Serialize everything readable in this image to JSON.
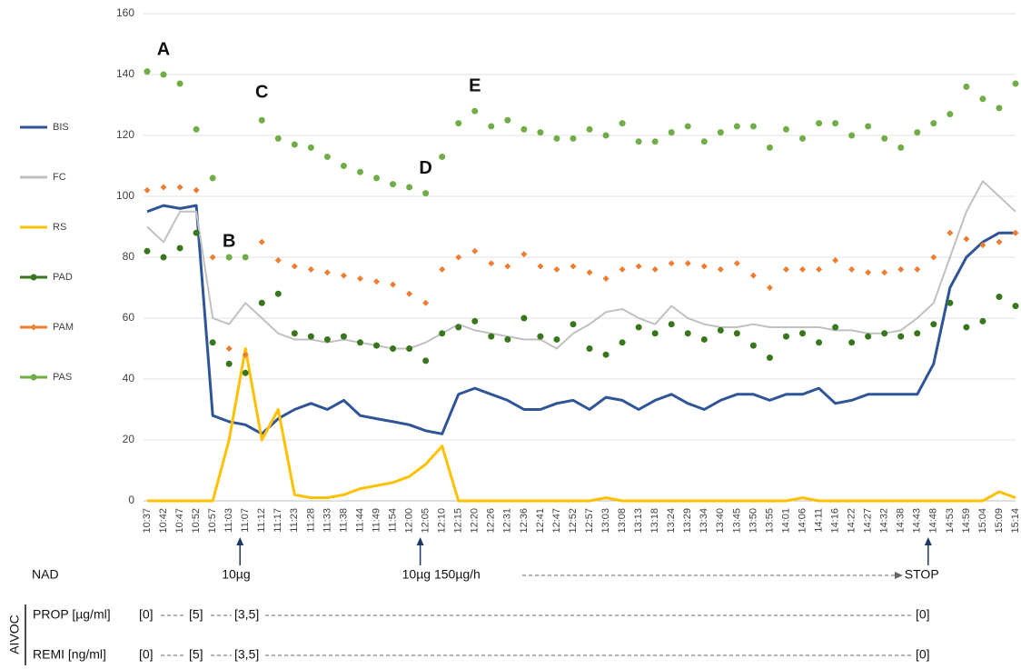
{
  "chart_data": {
    "type": "line",
    "categories": [
      "10:37",
      "10:42",
      "10:47",
      "10:52",
      "10:57",
      "11:03",
      "11:07",
      "11:12",
      "11:17",
      "11:23",
      "11:28",
      "11:33",
      "11:38",
      "11:44",
      "11:49",
      "11:54",
      "12:00",
      "12:05",
      "12:10",
      "12:15",
      "12:20",
      "12:26",
      "12:31",
      "12:36",
      "12:41",
      "12:47",
      "12:52",
      "12:57",
      "13:03",
      "13:08",
      "13:13",
      "13:18",
      "13:24",
      "13:29",
      "13:34",
      "13:40",
      "13:45",
      "13:50",
      "13:55",
      "14:01",
      "14:06",
      "14:11",
      "14:16",
      "14:22",
      "14:27",
      "14:32",
      "14:38",
      "14:43",
      "14:48",
      "14:53",
      "14:59",
      "15:04",
      "15:09",
      "15:14"
    ],
    "series": [
      {
        "name": "BIS",
        "color": "#2f5597",
        "kind": "line",
        "values": [
          95,
          97,
          96,
          97,
          28,
          26,
          25,
          22,
          27,
          30,
          32,
          30,
          33,
          28,
          27,
          26,
          25,
          23,
          22,
          35,
          37,
          35,
          33,
          30,
          30,
          32,
          33,
          30,
          34,
          33,
          30,
          33,
          35,
          32,
          30,
          33,
          35,
          35,
          33,
          35,
          35,
          37,
          32,
          33,
          35,
          35,
          35,
          35,
          45,
          70,
          80,
          85,
          88,
          88
        ]
      },
      {
        "name": "FC",
        "color": "#c0c0c0",
        "kind": "line",
        "values": [
          90,
          85,
          95,
          95,
          60,
          58,
          65,
          60,
          55,
          53,
          53,
          52,
          53,
          52,
          51,
          50,
          50,
          52,
          55,
          58,
          56,
          55,
          54,
          53,
          53,
          50,
          55,
          58,
          62,
          63,
          60,
          58,
          64,
          60,
          58,
          57,
          57,
          58,
          57,
          57,
          57,
          57,
          56,
          56,
          55,
          55,
          56,
          60,
          65,
          80,
          95,
          105,
          100,
          95
        ]
      },
      {
        "name": "RS",
        "color": "#ffc000",
        "kind": "line",
        "values": [
          0,
          0,
          0,
          0,
          0,
          20,
          50,
          20,
          30,
          2,
          1,
          1,
          2,
          4,
          5,
          6,
          8,
          12,
          18,
          0,
          0,
          0,
          0,
          0,
          0,
          0,
          0,
          0,
          1,
          0,
          0,
          0,
          0,
          0,
          0,
          0,
          0,
          0,
          0,
          0,
          1,
          0,
          0,
          0,
          0,
          0,
          0,
          0,
          0,
          0,
          0,
          0,
          3,
          1
        ]
      },
      {
        "name": "PAD",
        "color": "#38761d",
        "kind": "dots",
        "values": [
          82,
          80,
          83,
          88,
          52,
          45,
          42,
          65,
          68,
          55,
          54,
          53,
          54,
          52,
          51,
          50,
          50,
          46,
          55,
          57,
          59,
          54,
          53,
          60,
          54,
          53,
          58,
          50,
          48,
          52,
          57,
          55,
          58,
          55,
          53,
          56,
          55,
          51,
          47,
          54,
          55,
          52,
          57,
          52,
          54,
          55,
          54,
          55,
          58,
          65,
          57,
          59,
          67,
          64
        ]
      },
      {
        "name": "PAM",
        "color": "#ed7d31",
        "kind": "diamonds",
        "values": [
          102,
          103,
          103,
          102,
          80,
          50,
          48,
          85,
          79,
          77,
          76,
          75,
          74,
          73,
          72,
          71,
          68,
          65,
          76,
          80,
          82,
          78,
          77,
          81,
          77,
          76,
          77,
          75,
          73,
          76,
          77,
          76,
          78,
          78,
          77,
          76,
          78,
          74,
          70,
          76,
          76,
          76,
          79,
          76,
          75,
          75,
          76,
          76,
          80,
          88,
          86,
          84,
          85,
          88
        ]
      },
      {
        "name": "PAS",
        "color": "#70ad47",
        "kind": "dots",
        "values": [
          141,
          140,
          137,
          122,
          106,
          80,
          80,
          125,
          119,
          117,
          116,
          113,
          110,
          108,
          106,
          104,
          103,
          101,
          113,
          124,
          128,
          123,
          125,
          122,
          121,
          119,
          119,
          122,
          120,
          124,
          118,
          118,
          121,
          123,
          118,
          121,
          123,
          123,
          116,
          122,
          119,
          124,
          124,
          120,
          123,
          119,
          116,
          121,
          124,
          127,
          136,
          132,
          129,
          137
        ]
      }
    ],
    "ylim": [
      0,
      160
    ],
    "yticks": [
      0,
      20,
      40,
      60,
      80,
      100,
      120,
      140,
      160
    ],
    "grid": true,
    "annotations": [
      {
        "text": "A",
        "x": "10:42",
        "y": 148
      },
      {
        "text": "B",
        "x": "11:03",
        "y": 85
      },
      {
        "text": "C",
        "x": "11:12",
        "y": 134
      },
      {
        "text": "D",
        "x": "12:05",
        "y": 109
      },
      {
        "text": "E",
        "x": "12:20",
        "y": 136
      }
    ],
    "nad": {
      "label": "NAD",
      "events": [
        {
          "text": "10µg",
          "at": "11:07"
        },
        {
          "text": "10µg 150µg/h",
          "at": "12:05"
        },
        {
          "text": "STOP",
          "at": "14:48"
        }
      ]
    },
    "aivoc": {
      "label": "AIVOC",
      "rows": [
        {
          "name": "PROP [µg/ml]",
          "steps": [
            "[0]",
            "[5]",
            "[3,5]",
            "[0]"
          ]
        },
        {
          "name": "REMI [ng/ml]",
          "steps": [
            "[0]",
            "[5]",
            "[3,5]",
            "[0]"
          ]
        }
      ]
    }
  }
}
